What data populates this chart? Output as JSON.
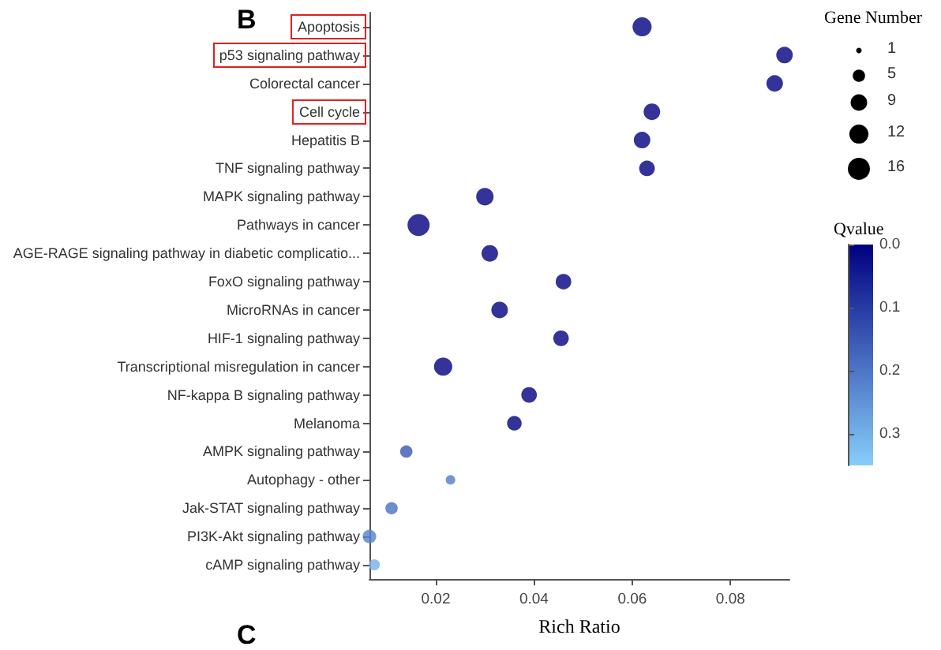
{
  "chart_data": {
    "type": "bubble",
    "title": "B",
    "xlabel": "Rich Ratio",
    "legend_title": "Gene Number",
    "clabel": "Qvalue",
    "categories": [
      "Apoptosis",
      "p53 signaling pathway",
      "Colorectal cancer",
      "Cell cycle",
      "Hepatitis B",
      "TNF signaling pathway",
      "MAPK signaling pathway",
      "Pathways in cancer",
      "AGE-RAGE signaling pathway in diabetic complicatio...",
      "FoxO signaling pathway",
      "MicroRNAs in cancer",
      "HIF-1 signaling pathway",
      "Transcriptional misregulation in cancer",
      "NF-kappa B signaling pathway",
      "Melanoma",
      "AMPK signaling pathway",
      "Autophagy - other",
      "Jak-STAT signaling pathway",
      "PI3K-Akt signaling pathway",
      "cAMP signaling pathway"
    ],
    "values": [
      0.062,
      0.091,
      0.089,
      0.064,
      0.062,
      0.063,
      0.03,
      0.0165,
      0.031,
      0.046,
      0.033,
      0.0455,
      0.0215,
      0.039,
      0.036,
      0.014,
      0.023,
      0.011,
      0.0065,
      0.0075
    ],
    "sizes": [
      12,
      9,
      9,
      9,
      9,
      8,
      10,
      16,
      9,
      8,
      9,
      8,
      11,
      8,
      7,
      5,
      3,
      5,
      6,
      4
    ],
    "cvalues": [
      0,
      0,
      0,
      0,
      0,
      0,
      0,
      0,
      0,
      0,
      0,
      0,
      0,
      0,
      0,
      0.15,
      0.21,
      0.19,
      0.22,
      0.3
    ],
    "size_legend": [
      1,
      5,
      9,
      12,
      16
    ],
    "clim": [
      0,
      0.35
    ],
    "cticks": [
      {
        "value": 0,
        "label": "0.0"
      },
      {
        "value": 0.1,
        "label": "0.1"
      },
      {
        "value": 0.2,
        "label": "0.2"
      },
      {
        "value": 0.3,
        "label": "0.3"
      }
    ],
    "orientation": "horizontal",
    "xlim": [
      0.0065,
      0.092
    ],
    "xticks": [
      0.02,
      0.04,
      0.06,
      0.08
    ],
    "grid": false,
    "annotations": [
      "C"
    ]
  }
}
